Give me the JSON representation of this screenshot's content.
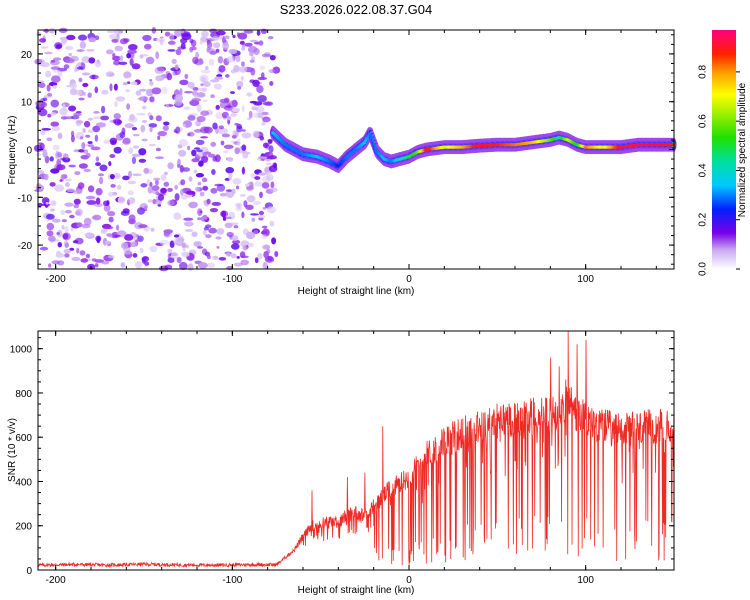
{
  "title": "S233.2026.022.08.37.G04",
  "chart_data": [
    {
      "type": "heatmap",
      "title": "S233.2026.022.08.37.G04",
      "xlabel": "Height of straight line (km)",
      "ylabel": "Frequency (Hz)",
      "xlim": [
        -210,
        150
      ],
      "ylim": [
        -25,
        25
      ],
      "xticks": [
        -200,
        -100,
        0,
        100
      ],
      "yticks": [
        -20,
        -10,
        0,
        10,
        20
      ],
      "noise_region_x": [
        -210,
        -75
      ],
      "signal_track": {
        "x": [
          -77,
          -70,
          -60,
          -52,
          -45,
          -40,
          -35,
          -30,
          -25,
          -22,
          -18,
          -14,
          -10,
          -5,
          0,
          5,
          10,
          20,
          30,
          40,
          50,
          60,
          70,
          80,
          85,
          90,
          95,
          100,
          110,
          120,
          130,
          140,
          150
        ],
        "freq": [
          3.5,
          1.0,
          -1.0,
          -1.5,
          -2.5,
          -3.5,
          -1.5,
          0.0,
          1.5,
          3.5,
          -0.5,
          -2.0,
          -2.5,
          -2.0,
          -1.5,
          -0.5,
          0.0,
          0.5,
          0.5,
          0.8,
          1.0,
          1.0,
          1.5,
          2.0,
          2.5,
          2.0,
          1.0,
          0.5,
          0.5,
          0.5,
          1.0,
          1.0,
          1.0
        ],
        "amplitude": [
          0.35,
          0.3,
          0.3,
          0.35,
          0.3,
          0.25,
          0.3,
          0.3,
          0.35,
          0.3,
          0.3,
          0.35,
          0.3,
          0.4,
          0.5,
          0.6,
          0.95,
          0.7,
          0.8,
          0.95,
          0.9,
          0.85,
          0.8,
          0.6,
          0.45,
          0.7,
          0.5,
          0.85,
          0.7,
          0.95,
          0.95,
          0.95,
          0.9
        ]
      },
      "colorbar": {
        "label": "Normalized spectral amplitude",
        "range": [
          0.0,
          0.97
        ],
        "ticks": [
          "0.0",
          "0.2",
          "0.4",
          "0.6",
          "0.8"
        ]
      }
    },
    {
      "type": "line",
      "xlabel": "Height of straight line (km)",
      "ylabel": "SNR (10 * v/v)",
      "xlim": [
        -210,
        150
      ],
      "ylim": [
        0,
        1080
      ],
      "xticks": [
        -200,
        -100,
        0,
        100
      ],
      "yticks": [
        0,
        200,
        400,
        600,
        800,
        1000
      ],
      "color": "#ee2a24",
      "series": [
        {
          "name": "SNR",
          "x": [
            -210,
            -190,
            -170,
            -150,
            -130,
            -110,
            -90,
            -75,
            -65,
            -60,
            -55,
            -50,
            -45,
            -40,
            -35,
            -30,
            -25,
            -20,
            -15,
            -10,
            -5,
            0,
            5,
            10,
            20,
            30,
            40,
            50,
            60,
            70,
            80,
            85,
            90,
            95,
            100,
            110,
            120,
            130,
            140,
            150
          ],
          "y": [
            22,
            25,
            22,
            26,
            23,
            22,
            24,
            24,
            90,
            150,
            200,
            210,
            220,
            215,
            250,
            260,
            250,
            290,
            330,
            370,
            390,
            420,
            470,
            520,
            580,
            620,
            640,
            670,
            690,
            700,
            700,
            720,
            780,
            700,
            680,
            650,
            630,
            640,
            650,
            640
          ]
        }
      ],
      "spikes": [
        {
          "x": -55,
          "y": 360
        },
        {
          "x": -35,
          "y": 420
        },
        {
          "x": -25,
          "y": 440
        },
        {
          "x": -15,
          "y": 650
        },
        {
          "x": 80,
          "y": 960
        },
        {
          "x": 85,
          "y": 920
        },
        {
          "x": 90,
          "y": 1080
        },
        {
          "x": 95,
          "y": 1020
        },
        {
          "x": 100,
          "y": 1040
        }
      ]
    }
  ]
}
